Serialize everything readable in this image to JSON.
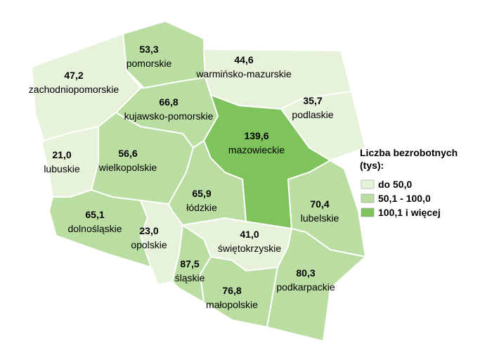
{
  "chart_data": {
    "type": "choropleth",
    "regions": [
      {
        "name": "zachodniopomorskie",
        "value": 47.2,
        "value_label": "47,2"
      },
      {
        "name": "pomorskie",
        "value": 53.3,
        "value_label": "53,3"
      },
      {
        "name": "warmińsko-mazurskie",
        "value": 44.6,
        "value_label": "44,6"
      },
      {
        "name": "podlaskie",
        "value": 35.7,
        "value_label": "35,7"
      },
      {
        "name": "kujawsko-pomorskie",
        "value": 66.8,
        "value_label": "66,8"
      },
      {
        "name": "mazowieckie",
        "value": 139.6,
        "value_label": "139,6"
      },
      {
        "name": "wielkopolskie",
        "value": 56.6,
        "value_label": "56,6"
      },
      {
        "name": "lubuskie",
        "value": 21.0,
        "value_label": "21,0"
      },
      {
        "name": "łódzkie",
        "value": 65.9,
        "value_label": "65,9"
      },
      {
        "name": "lubelskie",
        "value": 70.4,
        "value_label": "70,4"
      },
      {
        "name": "dolnośląskie",
        "value": 65.1,
        "value_label": "65,1"
      },
      {
        "name": "opolskie",
        "value": 23.0,
        "value_label": "23,0"
      },
      {
        "name": "świętokrzyskie",
        "value": 41.0,
        "value_label": "41,0"
      },
      {
        "name": "śląskie",
        "value": 87.5,
        "value_label": "87,5"
      },
      {
        "name": "małopolskie",
        "value": 76.8,
        "value_label": "76,8"
      },
      {
        "name": "podkarpackie",
        "value": 80.3,
        "value_label": "80,3"
      }
    ],
    "legend_title": "Liczba bezrobotnych (tys):",
    "classes": [
      {
        "label": "do 50,0",
        "to": 50,
        "color": "#e6f2da"
      },
      {
        "label": "50,1 - 100,0",
        "from": 50.1,
        "to": 100,
        "color": "#badda2"
      },
      {
        "label": "100,1 i więcej",
        "from": 100.1,
        "color": "#7fc35c"
      }
    ]
  }
}
